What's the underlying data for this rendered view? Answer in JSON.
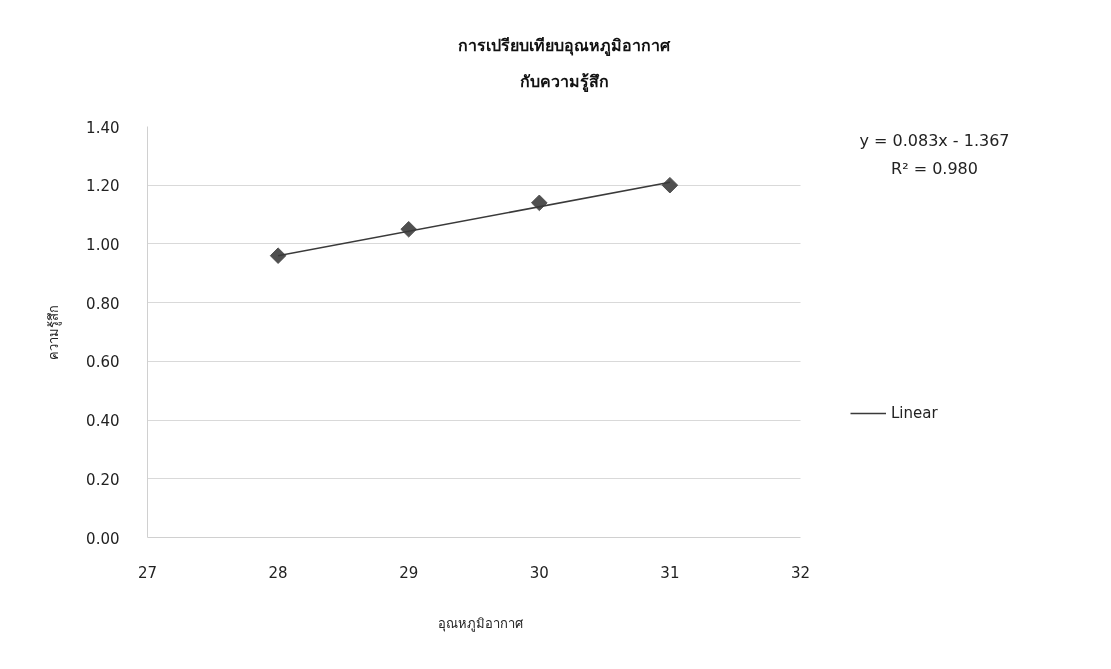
{
  "chart_data": {
    "type": "scatter",
    "title": "การเปรียบเทียบอุณหภูมิอากาศ",
    "subtitle": "กับความรู้สึก",
    "xlabel": "อุณหภูมิอากาศ",
    "ylabel": "ความรู้สึก",
    "annotations": [
      "y = 0.083x - 1.367",
      "R² = 0.980"
    ],
    "series": [
      {
        "color": "#505050",
        "marker": "diamond",
        "x": [
          28,
          29,
          30,
          31
        ],
        "values": [
          0.96,
          1.05,
          1.14,
          1.2
        ]
      },
      {
        "type": "line",
        "name": "Linear",
        "color": "#3a3a3a",
        "marker": "none",
        "x": [
          28,
          31
        ],
        "values": [
          0.96,
          1.21
        ]
      }
    ],
    "xlim": [
      27,
      32
    ],
    "xticks": [
      27,
      28,
      29,
      30,
      31,
      32
    ],
    "ylim": [
      0,
      1.4
    ],
    "yticks": [
      {
        "value": 0,
        "label": "0.00"
      },
      {
        "value": 0.2,
        "label": "0.20"
      },
      {
        "value": 0.4,
        "label": "0.40"
      },
      {
        "value": 0.6,
        "label": "0.60"
      },
      {
        "value": 0.8,
        "label": "0.80"
      },
      {
        "value": 1.0,
        "label": "1.00"
      },
      {
        "value": 1.2,
        "label": "1.20"
      },
      {
        "value": 1.4,
        "label": "1.40"
      }
    ],
    "grid": "y",
    "legend": "right",
    "line_style": "solid"
  }
}
